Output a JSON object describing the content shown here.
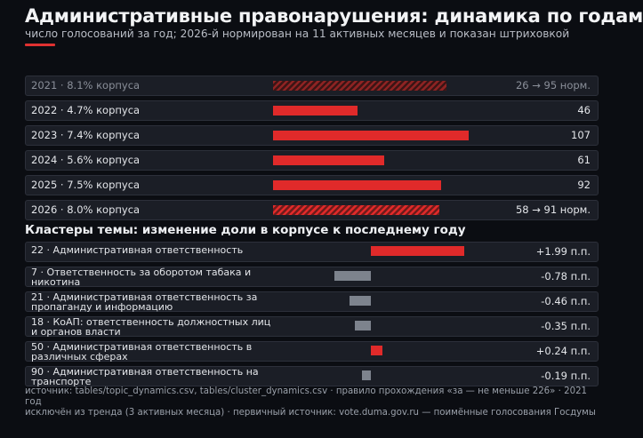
{
  "header": {
    "title": "Административные правонарушения: динамика по годам",
    "subtitle": "число голосований за год; 2026-й нормирован на 11 активных месяцев и показан штриховкой"
  },
  "colors": {
    "background": "#0b0d12",
    "accent": "#e03131",
    "positive_bar": "#e02a2a",
    "negative_bar": "#7d838d"
  },
  "chart_data": [
    {
      "type": "bar",
      "orientation": "horizontal",
      "rows": [
        {
          "year": "2021",
          "label": "2021 · 8.1% корпуса",
          "value": 95,
          "raw": 26,
          "value_label": "26 → 95 норм.",
          "hatched": true,
          "faded": true
        },
        {
          "year": "2022",
          "label": "2022 · 4.7% корпуса",
          "value": 46,
          "value_label": "46",
          "hatched": false,
          "faded": false
        },
        {
          "year": "2023",
          "label": "2023 · 7.4% корпуса",
          "value": 107,
          "value_label": "107",
          "hatched": false,
          "faded": false
        },
        {
          "year": "2024",
          "label": "2024 · 5.6% корпуса",
          "value": 61,
          "value_label": "61",
          "hatched": false,
          "faded": false
        },
        {
          "year": "2025",
          "label": "2025 · 7.5% корпуса",
          "value": 92,
          "value_label": "92",
          "hatched": false,
          "faded": false
        },
        {
          "year": "2026",
          "label": "2026 · 8.0% корпуса",
          "value": 91,
          "raw": 58,
          "value_label": "58 → 91 норм.",
          "hatched": true,
          "faded": false
        }
      ],
      "xlim": [
        0,
        107
      ]
    },
    {
      "type": "bar",
      "orientation": "horizontal",
      "title": "Кластеры темы: изменение доли в корпусе к последнему году",
      "unit": "п.п.",
      "rows": [
        {
          "label": "22 · Административная ответственность",
          "value": 1.99,
          "value_label": "+1.99 п.п."
        },
        {
          "label": "7 · Ответственность за оборотом табака и никотина",
          "value": -0.78,
          "value_label": "-0.78 п.п."
        },
        {
          "label": "21 · Административная ответственность за пропаганду и информацию",
          "value": -0.46,
          "value_label": "-0.46 п.п."
        },
        {
          "label": "18 · КоАП: ответственность должностных лиц и органов власти",
          "value": -0.35,
          "value_label": "-0.35 п.п."
        },
        {
          "label": "50 · Административная ответственность в различных сферах",
          "value": 0.24,
          "value_label": "+0.24 п.п."
        },
        {
          "label": "90 · Административная ответственность на транспорте",
          "value": -0.19,
          "value_label": "-0.19 п.п."
        }
      ],
      "xlim": [
        -1.99,
        1.99
      ]
    }
  ],
  "footer": {
    "line1": "источник: tables/topic_dynamics.csv, tables/cluster_dynamics.csv · правило прохождения «за — не меньше 226» · 2021 год",
    "line2": "исключён из тренда (3 активных месяца) · первичный источник: vote.duma.gov.ru — поимённые голосования Госдумы"
  }
}
